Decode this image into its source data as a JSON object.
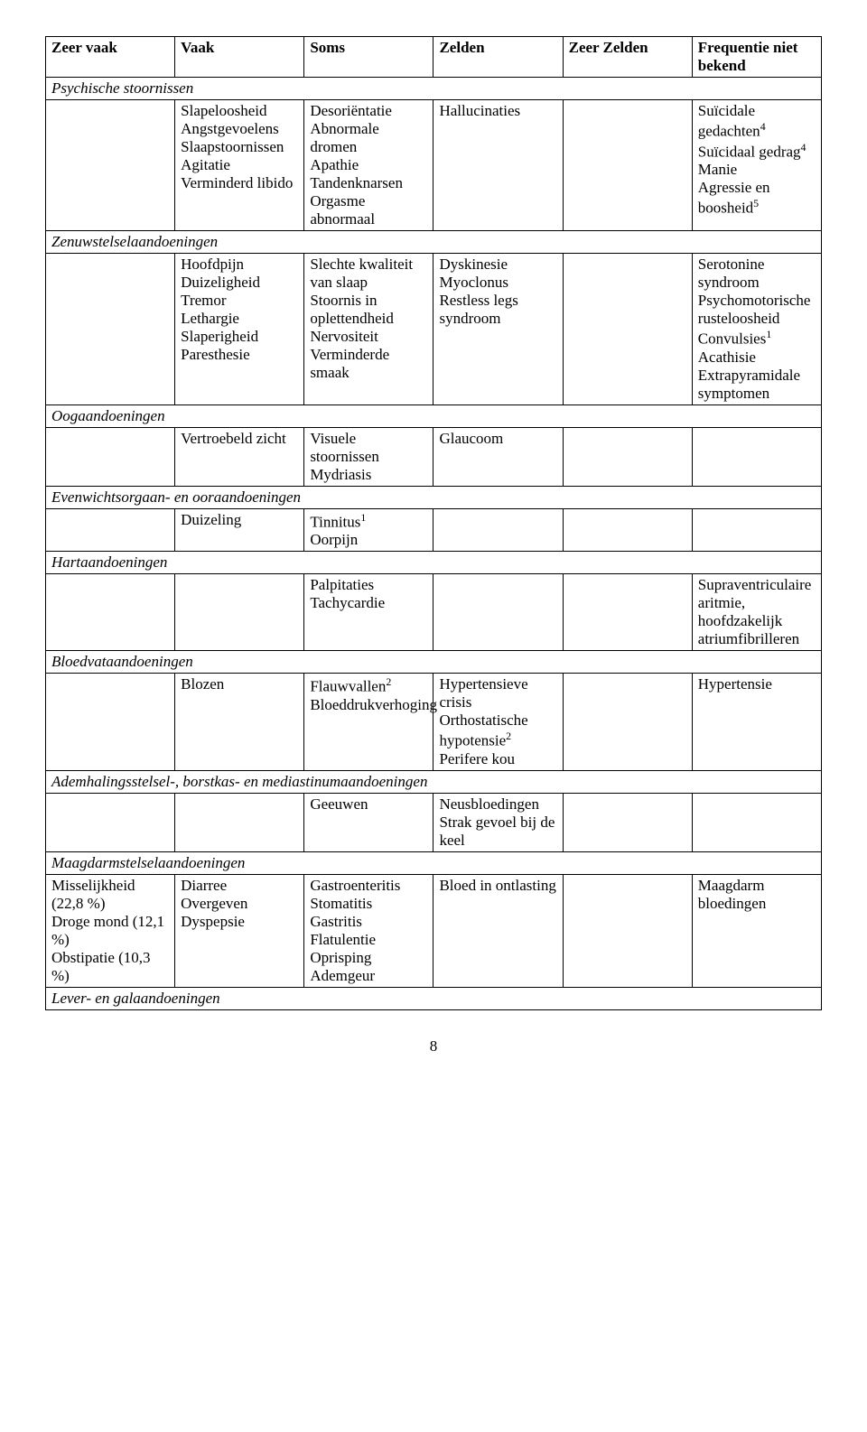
{
  "columns": [
    "Zeer vaak",
    "Vaak",
    "Soms",
    "Zelden",
    "Zeer Zelden",
    "Frequentie niet bekend"
  ],
  "sections": [
    {
      "title": "Psychische stoornissen",
      "rows": [
        {
          "c0": "",
          "c1": "Slapeloosheid\nAngstgevoelens\nSlaapstoornissen\nAgitatie\nVerminderd libido",
          "c2": "Desoriëntatie\nAbnormale dromen\nApathie\nTandenknarsen\nOrgasme abnormaal",
          "c3": "Hallucinaties",
          "c4": "",
          "c5": "Suïcidale gedachten<sup>4</sup>\nSuïcidaal gedrag<sup>4</sup>\nManie\nAgressie en boosheid<sup>5</sup>"
        }
      ]
    },
    {
      "title": "Zenuwstelselaandoeningen",
      "rows": [
        {
          "c0": "",
          "c1": "Hoofdpijn\nDuizeligheid\nTremor\nLethargie\nSlaperigheid\nParesthesie",
          "c2": "Slechte kwaliteit van slaap\nStoornis in oplettendheid\nNervositeit\nVerminderde smaak",
          "c3": "Dyskinesie\nMyoclonus\nRestless legs syndroom",
          "c4": "",
          "c5": "Serotonine syndroom\nPsychomotorische rusteloosheid\nConvulsies<sup>1</sup>\nAcathisie\nExtrapyramidale symptomen"
        }
      ]
    },
    {
      "title": "Oogaandoeningen",
      "rows": [
        {
          "c0": "",
          "c1": "Vertroebeld zicht",
          "c2": "Visuele stoornissen\nMydriasis",
          "c3": "Glaucoom",
          "c4": "",
          "c5": ""
        }
      ]
    },
    {
      "title": "Evenwichtsorgaan- en ooraandoeningen",
      "rows": [
        {
          "c0": "",
          "c1": "Duizeling",
          "c2": "Tinnitus<sup>1</sup>\nOorpijn",
          "c3": "",
          "c4": "",
          "c5": ""
        }
      ]
    },
    {
      "title": "Hartaandoeningen",
      "rows": [
        {
          "c0": "",
          "c1": "",
          "c2": "Palpitaties\nTachycardie",
          "c3": "",
          "c4": "",
          "c5": "Supraventriculaire aritmie, hoofdzakelijk atriumfibrilleren"
        }
      ]
    },
    {
      "title": "Bloedvataandoeningen",
      "rows": [
        {
          "c0": "",
          "c1": "Blozen",
          "c2": "Flauwvallen<sup>2</sup>\nBloeddrukverhoging",
          "c3": "Hypertensieve crisis\nOrthostatische hypotensie<sup>2</sup>\nPerifere kou",
          "c4": "",
          "c5": "Hypertensie"
        }
      ]
    },
    {
      "title": "Ademhalingsstelsel-, borstkas- en mediastinumaandoeningen",
      "rows": [
        {
          "c0": "",
          "c1": "",
          "c2": "Geeuwen",
          "c3": "Neusbloedingen\nStrak gevoel bij de keel",
          "c4": "",
          "c5": ""
        }
      ]
    },
    {
      "title": "Maagdarmstelselaandoeningen",
      "rows": [
        {
          "c0": "Misselijkheid (22,8 %)\nDroge mond (12,1 %)\nObstipatie (10,3 %)",
          "c1": "Diarree\nOvergeven\nDyspepsie",
          "c2": "Gastroenteritis\nStomatitis\nGastritis\nFlatulentie\nOprisping\nAdemgeur",
          "c3": "Bloed in ontlasting",
          "c4": "",
          "c5": "Maagdarm bloedingen"
        }
      ]
    },
    {
      "title": "Lever- en galaandoeningen",
      "rows": []
    }
  ],
  "pageNumber": "8"
}
